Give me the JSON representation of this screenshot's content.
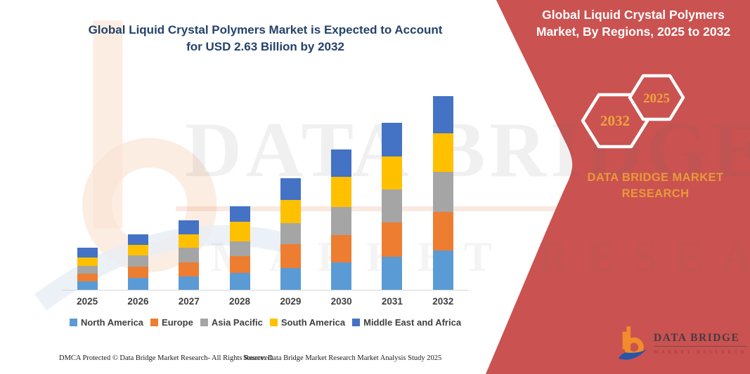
{
  "title": {
    "line1": "Global Liquid Crystal Polymers Market is Expected to Account",
    "line2": "for USD 2.63 Billion by 2032"
  },
  "chart_data": {
    "type": "bar",
    "stacked": true,
    "title": "Global Liquid Crystal Polymers Market is Expected to Account for USD 2.63 Billion by 2032",
    "categories": [
      "2025",
      "2026",
      "2027",
      "2028",
      "2029",
      "2030",
      "2031",
      "2032"
    ],
    "series": [
      {
        "name": "North America",
        "color": "#5B9BD5",
        "values": [
          0.11,
          0.16,
          0.18,
          0.23,
          0.3,
          0.37,
          0.45,
          0.53
        ]
      },
      {
        "name": "Europe",
        "color": "#ED7D31",
        "values": [
          0.11,
          0.15,
          0.19,
          0.23,
          0.32,
          0.37,
          0.46,
          0.53
        ]
      },
      {
        "name": "Asia Pacific",
        "color": "#A5A5A5",
        "values": [
          0.1,
          0.16,
          0.2,
          0.2,
          0.29,
          0.38,
          0.45,
          0.54
        ]
      },
      {
        "name": "South America",
        "color": "#FFC000",
        "values": [
          0.12,
          0.14,
          0.18,
          0.26,
          0.31,
          0.41,
          0.45,
          0.52
        ]
      },
      {
        "name": "Middle East and Africa",
        "color": "#4472C4",
        "values": [
          0.13,
          0.14,
          0.19,
          0.21,
          0.3,
          0.37,
          0.46,
          0.51
        ]
      }
    ],
    "totals": [
      0.57,
      0.75,
      0.94,
      1.13,
      1.52,
      1.9,
      2.27,
      2.63
    ],
    "values_unit": "USD billion (estimated from bar heights; 2032 total labeled as USD 2.63 billion)",
    "xlabel": "",
    "ylabel": "",
    "ylim": [
      0,
      2.7
    ],
    "grid": false,
    "legend_position": "bottom",
    "legend": [
      "North America",
      "Europe",
      "Asia Pacific",
      "South America",
      "Middle East and Africa"
    ]
  },
  "right_panel": {
    "heading_line1": "Global Liquid Crystal Polymers",
    "heading_line2": "Market, By Regions, 2025 to 2032",
    "hexagon_back_year": "2032",
    "hexagon_front_year": "2025",
    "brand_line1": "DATA BRIDGE MARKET",
    "brand_line2": "RESEARCH"
  },
  "logo": {
    "name": "DATA BRIDGE",
    "tagline": "MARKET RESEARCH"
  },
  "watermark": {
    "brand": "DATA BRIDGE",
    "tagline": "MARKET RESEARCH"
  },
  "footer": {
    "left": "DMCA Protected © Data Bridge Market Research-  All Rights Reserved.",
    "right": "Source: Data Bridge Market Research  Market Analysis Study 2025"
  },
  "colors": {
    "panel_red": "#CA5250",
    "title_navy": "#24426B",
    "gold_text": "#E9993B",
    "hex_year_gold": "#EFA53D",
    "axis_line": "#D6D6D6",
    "axis_text": "#3F3F3F",
    "logo_orange": "#F28B2B",
    "logo_blue": "#2456A8"
  }
}
